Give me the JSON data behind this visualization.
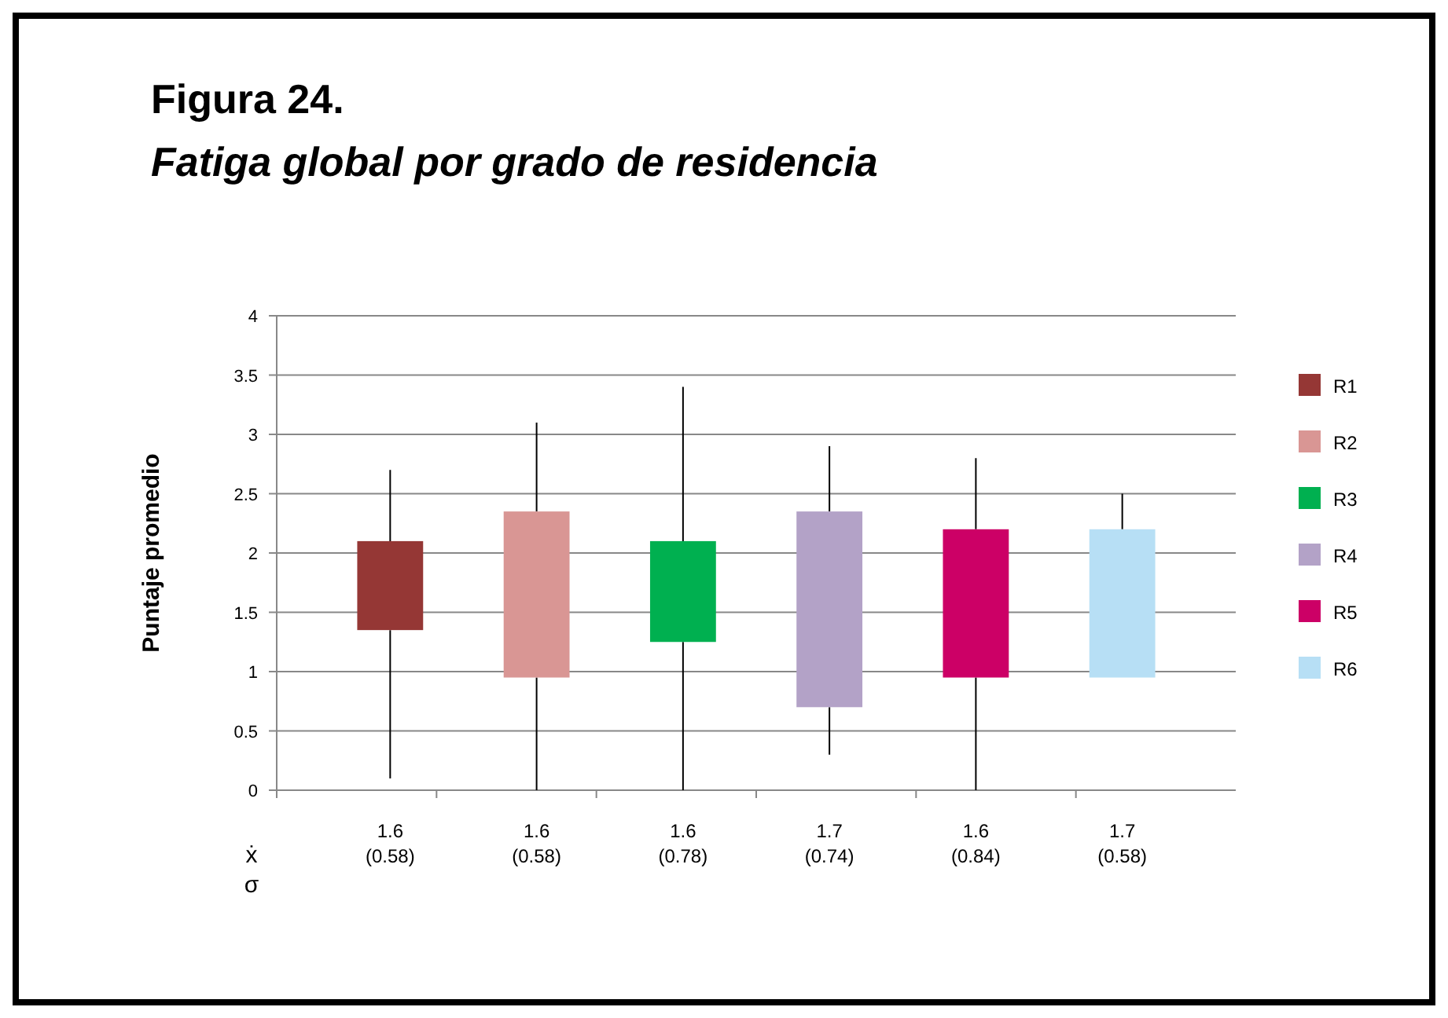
{
  "chart_data": {
    "type": "candlestick",
    "title": "Figura 24.",
    "subtitle": "Fatiga global por grado de residencia",
    "ylabel": "Puntaje promedio",
    "categories": [
      "1.6\n(0.58)",
      "1.6\n(0.58)",
      "1.6\n(0.78)",
      "1.7\n(0.74)",
      "1.6\n(0.84)",
      "1.7\n(0.58)"
    ],
    "series": [
      {
        "name": "R1",
        "color": "#953735",
        "ohlc": [
          [
            1.35,
            2.7,
            0.1,
            2.1
          ],
          null,
          null,
          null,
          null,
          null
        ]
      },
      {
        "name": "R2",
        "color": "#d99694",
        "ohlc": [
          null,
          [
            0.95,
            3.1,
            0,
            2.35
          ],
          null,
          null,
          null,
          null
        ]
      },
      {
        "name": "R3",
        "color": "#00b050",
        "ohlc": [
          null,
          null,
          [
            1.25,
            3.4,
            0,
            2.1
          ],
          null,
          null,
          null
        ]
      },
      {
        "name": "R4",
        "color": "#b3a2c7",
        "ohlc": [
          null,
          null,
          null,
          [
            0.7,
            2.9,
            0.3,
            2.35
          ],
          null,
          null
        ]
      },
      {
        "name": "R5",
        "color": "#cc0066",
        "ohlc": [
          null,
          null,
          null,
          null,
          [
            0.95,
            2.8,
            0,
            2.2
          ],
          null
        ]
      },
      {
        "name": "R6",
        "color": "#b7dff5",
        "ohlc": [
          null,
          null,
          null,
          null,
          null,
          [
            0.95,
            2.5,
            0.95,
            2.2
          ]
        ]
      }
    ],
    "ylim": [
      0,
      4
    ],
    "yticks": [
      0,
      0.5,
      1,
      1.5,
      2,
      2.5,
      3,
      3.5,
      4
    ],
    "grid": "y",
    "legend": "right",
    "annotations": [
      "ẋ",
      "σ"
    ]
  }
}
